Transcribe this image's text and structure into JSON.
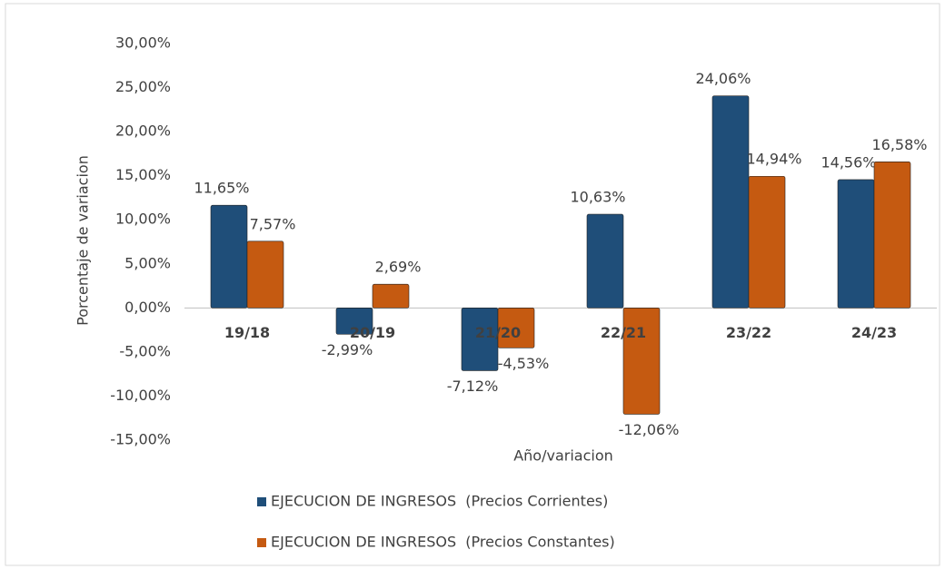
{
  "chart_data": {
    "type": "bar",
    "y_axis_label": "Porcentaje de variacion",
    "x_axis_label": "Año/variacion",
    "categories": [
      "19/18",
      "20/19",
      "21/20",
      "22/21",
      "23/22",
      "24/23"
    ],
    "series": [
      {
        "name": "EJECUCION DE INGRESOS  (Precios Corrientes)",
        "color": "#1f4e79",
        "values": [
          11.65,
          -2.99,
          -7.12,
          10.63,
          24.06,
          14.56
        ],
        "value_labels": [
          "11,65%",
          "-2,99%",
          "-7,12%",
          "10,63%",
          "24,06%",
          "14,56%"
        ]
      },
      {
        "name": "EJECUCION DE INGRESOS  (Precios Constantes)",
        "color": "#c55a11",
        "values": [
          7.57,
          2.69,
          -4.53,
          -12.06,
          14.94,
          16.58
        ],
        "value_labels": [
          "7,57%",
          "2,69%",
          "-4,53%",
          "-12,06%",
          "14,94%",
          "16,58%"
        ]
      }
    ],
    "ylim": [
      -15,
      30
    ],
    "yticks": [
      {
        "value": -15,
        "label": "-15,00%"
      },
      {
        "value": -10,
        "label": "-10,00%"
      },
      {
        "value": -5,
        "label": "-5,00%"
      },
      {
        "value": 0,
        "label": "0,00%"
      },
      {
        "value": 5,
        "label": "5,00%"
      },
      {
        "value": 10,
        "label": "10,00%"
      },
      {
        "value": 15,
        "label": "15,00%"
      },
      {
        "value": 20,
        "label": "20,00%"
      },
      {
        "value": 25,
        "label": "25,00%"
      },
      {
        "value": 30,
        "label": "30,00%"
      }
    ],
    "grid": false,
    "legend": "bottom"
  }
}
